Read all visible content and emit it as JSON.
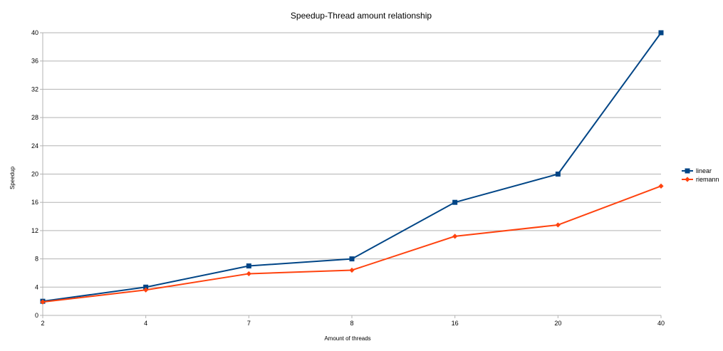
{
  "chart_data": {
    "type": "line",
    "title": "Speedup-Thread amount relationship",
    "xlabel": "Amount of threads",
    "ylabel": "Speedup",
    "categories": [
      "2",
      "4",
      "7",
      "8",
      "16",
      "20",
      "40"
    ],
    "ylim": [
      0,
      40
    ],
    "yticks": [
      0,
      4,
      8,
      12,
      16,
      20,
      24,
      28,
      32,
      36,
      40
    ],
    "grid": true,
    "legend_position": "right",
    "series": [
      {
        "name": "linear",
        "color": "#004586",
        "marker": "square",
        "values": [
          2,
          4,
          7,
          8,
          16,
          20,
          40
        ]
      },
      {
        "name": "riemann",
        "color": "#ff420e",
        "marker": "diamond",
        "values": [
          1.9,
          3.6,
          5.9,
          6.4,
          11.2,
          12.8,
          18.3
        ]
      }
    ]
  }
}
